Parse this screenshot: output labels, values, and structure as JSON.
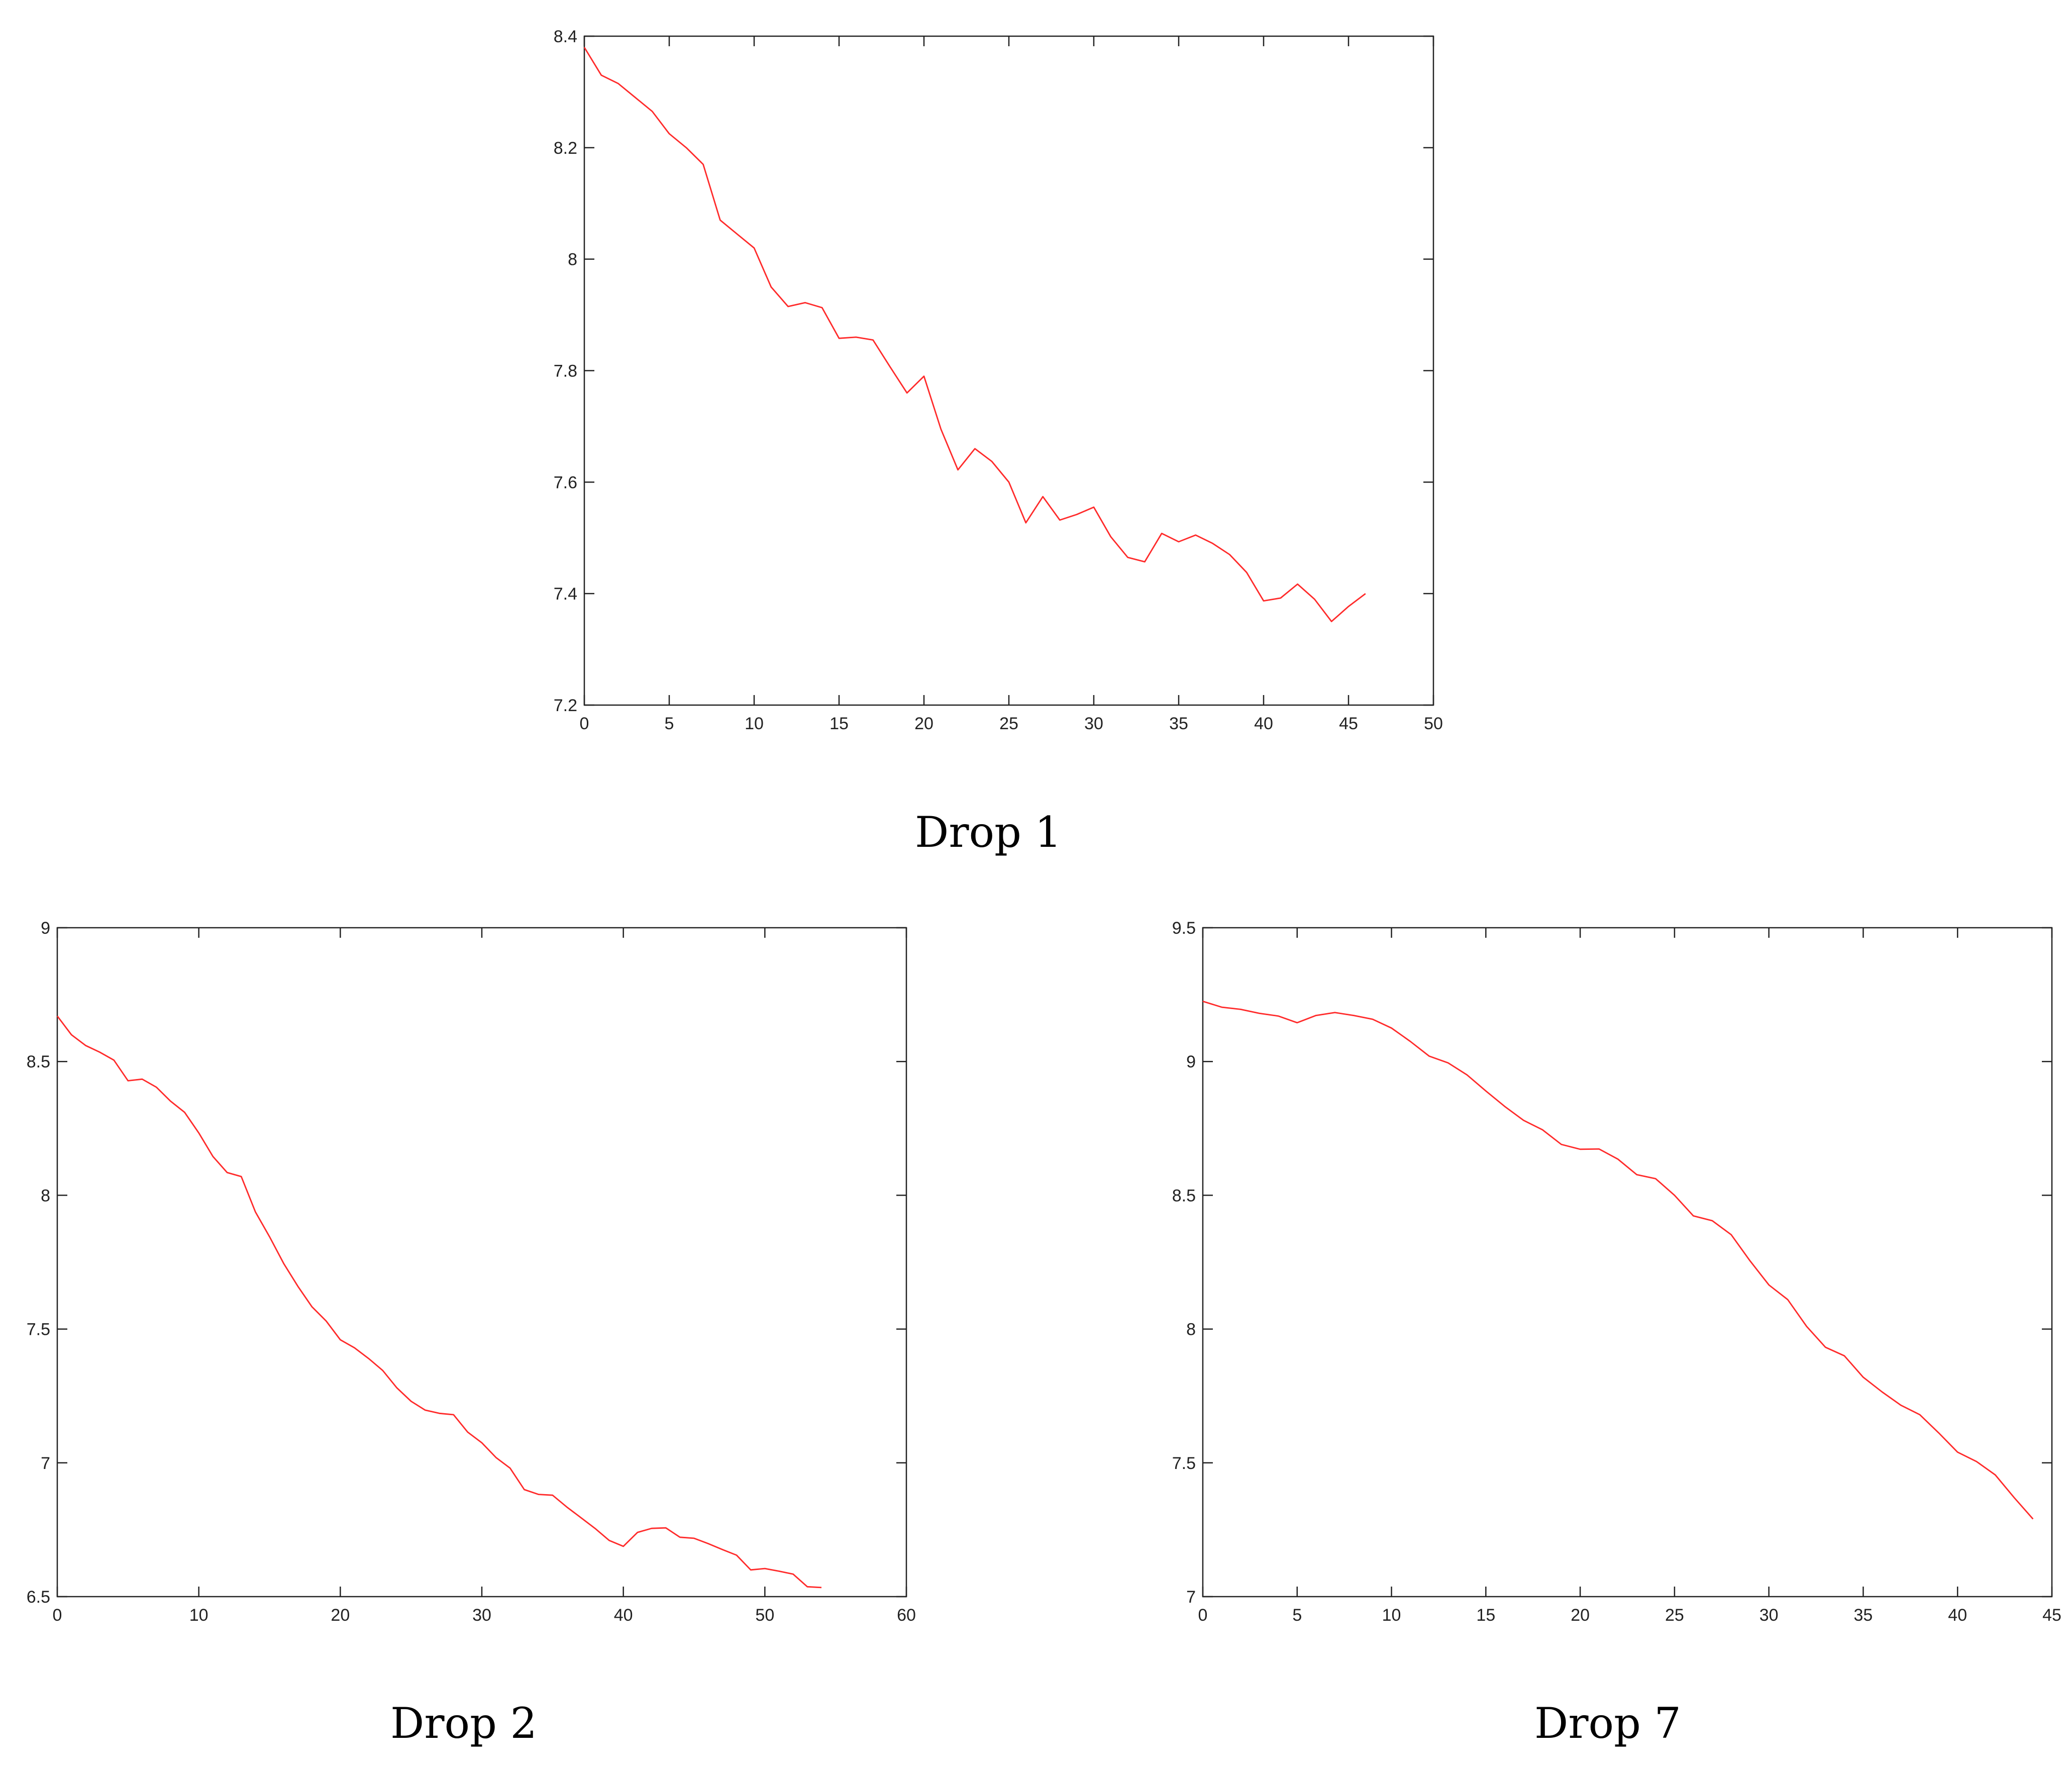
{
  "colors": {
    "line": "#ff2a2a",
    "axis": "#222222",
    "background": "#ffffff"
  },
  "chart_data": [
    {
      "type": "line",
      "caption": "Drop 1",
      "title": "",
      "xlabel": "",
      "ylabel": "",
      "xlim": [
        0,
        50
      ],
      "ylim": [
        7.2,
        8.4
      ],
      "xticks": [
        0,
        5,
        10,
        15,
        20,
        25,
        30,
        35,
        40,
        45,
        50
      ],
      "yticks": [
        7.2,
        7.4,
        7.6,
        7.8,
        8,
        8.2,
        8.4
      ],
      "ytick_labels": [
        "7.2",
        "7.4",
        "7.6",
        "7.8",
        "8",
        "8.2",
        "8.4"
      ],
      "grid": false,
      "series": [
        {
          "color": "#ff2a2a",
          "x": [
            0,
            1,
            2,
            3,
            4,
            5,
            6,
            7,
            8,
            9,
            10,
            11,
            12,
            13,
            14,
            15,
            16,
            17,
            18,
            19,
            20,
            21,
            22,
            23,
            24,
            25,
            26,
            27,
            28,
            29,
            30,
            31,
            32,
            33,
            34,
            35,
            36,
            37,
            38,
            39,
            40,
            41,
            42,
            43,
            44,
            45,
            46
          ],
          "y": [
            8.38,
            8.33,
            8.315,
            8.29,
            8.265,
            8.225,
            8.2,
            8.17,
            8.07,
            8.045,
            8.02,
            7.95,
            7.915,
            7.922,
            7.913,
            7.858,
            7.86,
            7.855,
            7.807,
            7.76,
            7.79,
            7.695,
            7.622,
            7.66,
            7.637,
            7.6,
            7.527,
            7.574,
            7.532,
            7.542,
            7.555,
            7.502,
            7.465,
            7.457,
            7.508,
            7.493,
            7.505,
            7.49,
            7.47,
            7.438,
            7.387,
            7.392,
            7.417,
            7.39,
            7.35,
            7.377,
            7.4
          ]
        }
      ]
    },
    {
      "type": "line",
      "caption": "Drop 2",
      "title": "",
      "xlabel": "",
      "ylabel": "",
      "xlim": [
        0,
        60
      ],
      "ylim": [
        6.5,
        9
      ],
      "xticks": [
        0,
        10,
        20,
        30,
        40,
        50,
        60
      ],
      "yticks": [
        6.5,
        7,
        7.5,
        8,
        8.5,
        9
      ],
      "ytick_labels": [
        "6.5",
        "7",
        "7.5",
        "8",
        "8.5",
        "9"
      ],
      "grid": false,
      "series": [
        {
          "color": "#ff2a2a",
          "x": [
            0,
            1,
            2,
            3,
            4,
            5,
            6,
            7,
            8,
            9,
            10,
            11,
            12,
            13,
            14,
            15,
            16,
            17,
            18,
            19,
            20,
            21,
            22,
            23,
            24,
            25,
            26,
            27,
            28,
            29,
            30,
            31,
            32,
            33,
            34,
            35,
            36,
            37,
            38,
            39,
            40,
            41,
            42,
            43,
            44,
            45,
            46,
            47,
            48,
            49,
            50,
            51,
            52,
            53,
            54
          ],
          "y": [
            8.67,
            8.6,
            8.56,
            8.535,
            8.505,
            8.428,
            8.434,
            8.404,
            8.352,
            8.31,
            8.233,
            8.145,
            8.085,
            8.07,
            7.938,
            7.845,
            7.745,
            7.66,
            7.583,
            7.53,
            7.46,
            7.43,
            7.39,
            7.345,
            7.28,
            7.23,
            7.197,
            7.185,
            7.18,
            7.115,
            7.075,
            7.02,
            6.98,
            6.9,
            6.882,
            6.879,
            6.835,
            6.795,
            6.755,
            6.71,
            6.688,
            6.74,
            6.755,
            6.757,
            6.722,
            6.718,
            6.698,
            6.676,
            6.655,
            6.6,
            6.605,
            6.595,
            6.584,
            6.537,
            6.534
          ]
        }
      ]
    },
    {
      "type": "line",
      "caption": "Drop 7",
      "title": "",
      "xlabel": "",
      "ylabel": "",
      "xlim": [
        0,
        45
      ],
      "ylim": [
        7,
        9.5
      ],
      "xticks": [
        0,
        5,
        10,
        15,
        20,
        25,
        30,
        35,
        40,
        45
      ],
      "yticks": [
        7,
        7.5,
        8,
        8.5,
        9,
        9.5
      ],
      "ytick_labels": [
        "7",
        "7.5",
        "8",
        "8.5",
        "9",
        "9.5"
      ],
      "grid": false,
      "series": [
        {
          "color": "#ff2a2a",
          "x": [
            0,
            1,
            2,
            3,
            4,
            5,
            6,
            7,
            8,
            9,
            10,
            11,
            12,
            13,
            14,
            15,
            16,
            17,
            18,
            19,
            20,
            21,
            22,
            23,
            24,
            25,
            26,
            27,
            28,
            29,
            30,
            31,
            32,
            33,
            34,
            35,
            36,
            37,
            38,
            39,
            40,
            41,
            42,
            43,
            44
          ],
          "y": [
            9.225,
            9.203,
            9.195,
            9.18,
            9.17,
            9.145,
            9.172,
            9.183,
            9.172,
            9.158,
            9.125,
            9.075,
            9.02,
            8.995,
            8.95,
            8.89,
            8.832,
            8.78,
            8.745,
            8.69,
            8.672,
            8.673,
            8.635,
            8.577,
            8.562,
            8.5,
            8.423,
            8.405,
            8.353,
            8.255,
            8.165,
            8.11,
            8.01,
            7.932,
            7.9,
            7.82,
            7.765,
            7.715,
            7.68,
            7.612,
            7.54,
            7.505,
            7.455,
            7.37,
            7.29
          ]
        }
      ]
    }
  ]
}
